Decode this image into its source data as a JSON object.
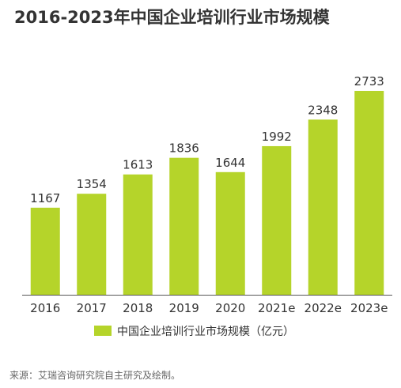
{
  "title": "2016-2023年中国企业培训行业市场规模",
  "source": "来源：艾瑞咨询研究院自主研究及绘制。",
  "colors": {
    "bar": "#b5d42a",
    "axis": "#555555",
    "text": "#333333",
    "title": "#333333"
  },
  "chart_data": {
    "type": "bar",
    "title": "2016-2023年中国企业培训行业市场规模",
    "categories": [
      "2016",
      "2017",
      "2018",
      "2019",
      "2020",
      "2021e",
      "2022e",
      "2023e"
    ],
    "series": [
      {
        "name": "中国企业培训行业市场规模（亿元）",
        "values": [
          1167,
          1354,
          1613,
          1836,
          1644,
          1992,
          2348,
          2733
        ]
      }
    ],
    "ylim": [
      0,
      3000
    ],
    "grid": false,
    "legend_position": "bottom"
  }
}
